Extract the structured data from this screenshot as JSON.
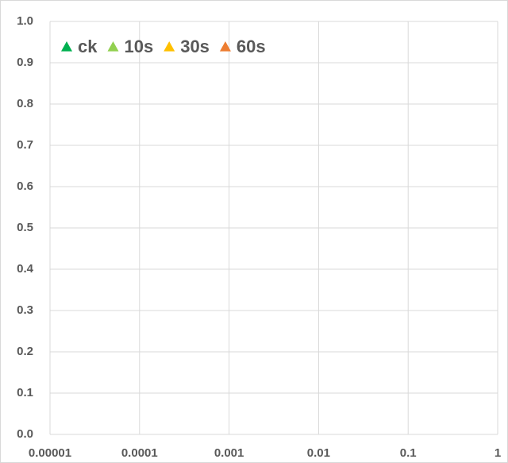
{
  "chart_data": {
    "type": "scatter",
    "series": [
      {
        "name": "ck",
        "color": "#00b050",
        "x": [],
        "values": []
      },
      {
        "name": "10s",
        "color": "#92d050",
        "x": [],
        "values": []
      },
      {
        "name": "30s",
        "color": "#ffc000",
        "x": [],
        "values": []
      },
      {
        "name": "60s",
        "color": "#ed7d31",
        "x": [],
        "values": []
      }
    ],
    "xlim": [
      1e-05,
      1
    ],
    "xticks": [
      1e-05,
      0.0001,
      0.001,
      0.01,
      0.1,
      1
    ],
    "xscale": "log",
    "ylim": [
      0,
      1
    ],
    "yticks": [
      {
        "value": 0,
        "label": "0.0"
      },
      0.1,
      0.2,
      0.3,
      0.4,
      0.5,
      0.6,
      0.7,
      0.8,
      0.9,
      {
        "value": 1,
        "label": "1.0"
      }
    ],
    "grid": true,
    "legend": "upper left"
  }
}
